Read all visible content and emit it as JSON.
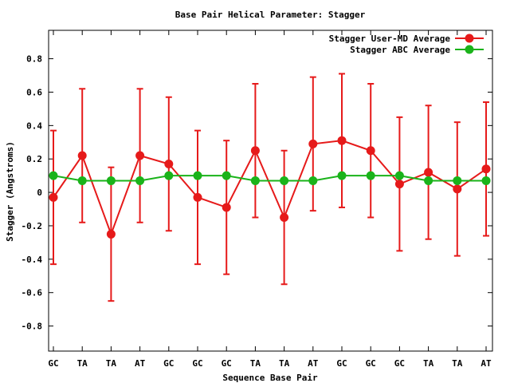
{
  "chart_data": {
    "type": "line",
    "title": "Base Pair Helical Parameter: Stagger",
    "xlabel": "Sequence Base Pair",
    "ylabel": "Stagger (Angstroms)",
    "categories": [
      "GC",
      "TA",
      "TA",
      "AT",
      "GC",
      "GC",
      "GC",
      "TA",
      "TA",
      "AT",
      "GC",
      "GC",
      "GC",
      "TA",
      "TA",
      "AT"
    ],
    "ylim": [
      -0.95,
      0.97
    ],
    "yticks": [
      -0.8,
      -0.6,
      -0.4,
      -0.2,
      0,
      0.2,
      0.4,
      0.6,
      0.8
    ],
    "ytick_labels": [
      "-0.8",
      "-0.6",
      "-0.4",
      "-0.2",
      "0",
      "0.2",
      "0.4",
      "0.6",
      "0.8"
    ],
    "grid": false,
    "legend_position": "top-right",
    "series": [
      {
        "name": "Stagger User-MD Average",
        "color": "#e61a1a",
        "values": [
          -0.03,
          0.22,
          -0.25,
          0.22,
          0.17,
          -0.03,
          -0.09,
          0.25,
          -0.15,
          0.29,
          0.31,
          0.25,
          0.05,
          0.12,
          0.02,
          0.14
        ],
        "errors": [
          0.4,
          0.4,
          0.4,
          0.4,
          0.4,
          0.4,
          0.4,
          0.4,
          0.4,
          0.4,
          0.4,
          0.4,
          0.4,
          0.4,
          0.4,
          0.4
        ]
      },
      {
        "name": "Stagger ABC Average",
        "color": "#1ab31a",
        "values": [
          0.1,
          0.07,
          0.07,
          0.07,
          0.1,
          0.1,
          0.1,
          0.07,
          0.07,
          0.07,
          0.1,
          0.1,
          0.1,
          0.07,
          0.07,
          0.07
        ]
      }
    ]
  }
}
